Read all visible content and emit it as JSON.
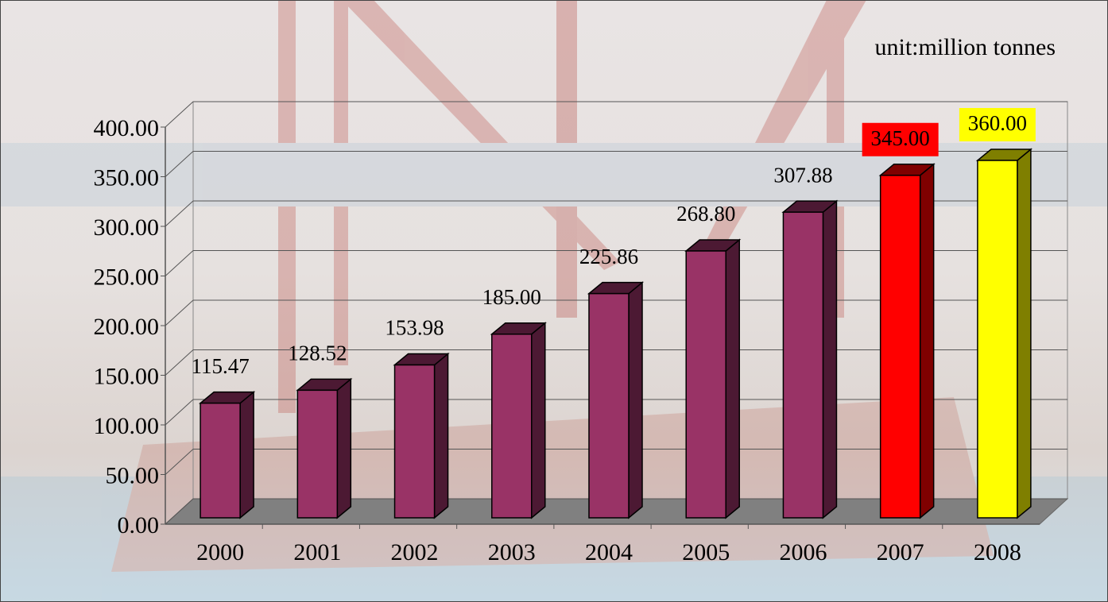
{
  "chart_data": {
    "type": "bar3d",
    "annotation": "unit:million tonnes",
    "categories": [
      "2000",
      "2001",
      "2002",
      "2003",
      "2004",
      "2005",
      "2006",
      "2007",
      "2008"
    ],
    "values": [
      115.47,
      128.52,
      153.98,
      185,
      225.86,
      268.8,
      307.88,
      345,
      360
    ],
    "value_labels": [
      "115.47",
      "128.52",
      "153.98",
      "185.00",
      "225.86",
      "268.80",
      "307.88",
      "345.00",
      "360.00"
    ],
    "colors": [
      "#993366",
      "#993366",
      "#993366",
      "#993366",
      "#993366",
      "#993366",
      "#993366",
      "#ff0000",
      "#ffff00"
    ],
    "value_label_backgrounds": [
      null,
      null,
      null,
      null,
      null,
      null,
      null,
      "#ff0000",
      "#ffff00"
    ],
    "ylim": [
      0,
      400
    ],
    "yticks": [
      {
        "value": 0,
        "label": "0.00"
      },
      {
        "value": 50,
        "label": "50.00"
      },
      {
        "value": 100,
        "label": "100.00"
      },
      {
        "value": 150,
        "label": "150.00"
      },
      {
        "value": 200,
        "label": "200.00"
      },
      {
        "value": 250,
        "label": "250.00"
      },
      {
        "value": 300,
        "label": "300.00"
      },
      {
        "value": 350,
        "label": "350.00"
      },
      {
        "value": 400,
        "label": "400.00"
      }
    ],
    "grid": true
  }
}
